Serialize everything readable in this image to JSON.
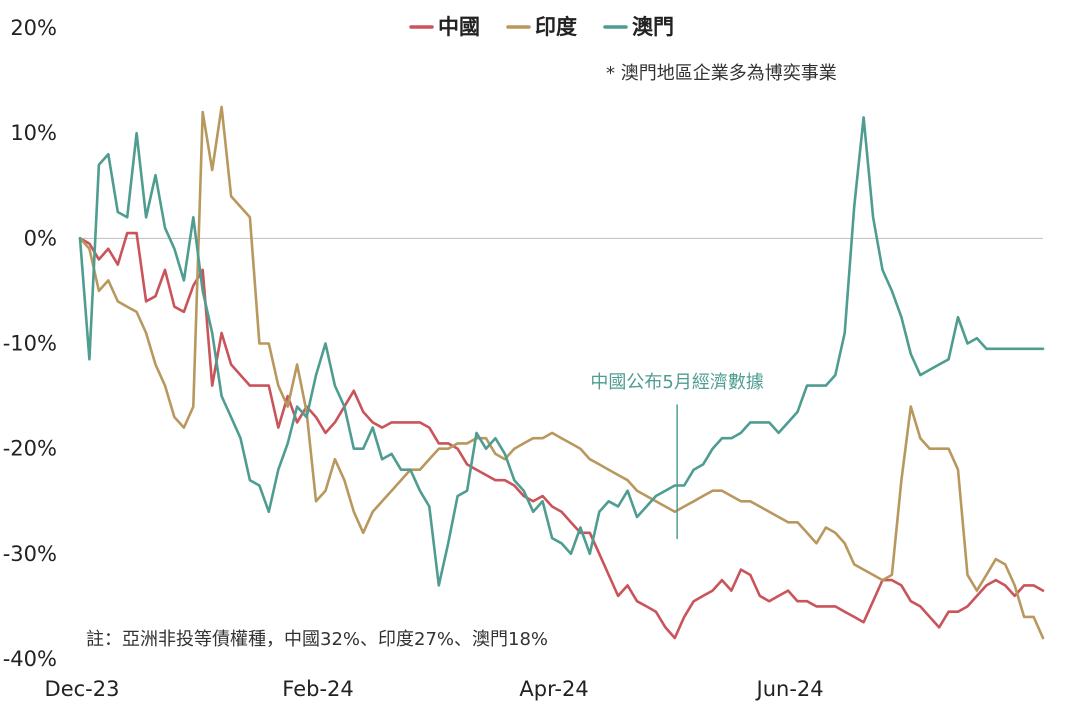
{
  "chart_data": {
    "type": "line",
    "title": "",
    "xlabel": "",
    "ylabel": "",
    "ylim": [
      -40,
      20
    ],
    "yticks": [
      20,
      10,
      0,
      -10,
      -20,
      -30,
      -40
    ],
    "ytick_labels": [
      "20%",
      "10%",
      "0%",
      "-10%",
      "-20%",
      "-30%",
      "-40%"
    ],
    "xlim": [
      0,
      204
    ],
    "xticks": [
      0,
      50,
      100,
      150
    ],
    "xtick_labels": [
      "Dec-23",
      "Feb-24",
      "Apr-24",
      "Jun-24"
    ],
    "legend_position": "top-center",
    "grid": false,
    "series": [
      {
        "name": "中國",
        "color": "#c9545a",
        "x": [
          0,
          2,
          4,
          6,
          8,
          10,
          12,
          14,
          16,
          18,
          20,
          22,
          24,
          26,
          28,
          30,
          32,
          34,
          36,
          38,
          40,
          42,
          44,
          46,
          48,
          50,
          52,
          54,
          56,
          58,
          60,
          62,
          64,
          66,
          68,
          70,
          72,
          74,
          76,
          78,
          80,
          82,
          84,
          86,
          88,
          90,
          92,
          94,
          96,
          98,
          100,
          102,
          104,
          106,
          108,
          110,
          112,
          114,
          116,
          118,
          120,
          122,
          124,
          126,
          128,
          130,
          132,
          134,
          136,
          138,
          140,
          142,
          144,
          146,
          148,
          150,
          152,
          154,
          156,
          158,
          160,
          162,
          164,
          166,
          168,
          170,
          172,
          174,
          176,
          178,
          180,
          182,
          184,
          186,
          188,
          190,
          192,
          194,
          196,
          198,
          200,
          202,
          204
        ],
        "values": [
          0,
          -0.5,
          -2,
          -1,
          -2.5,
          0.5,
          0.5,
          -6,
          -5.5,
          -3,
          -6.5,
          -7,
          -4.5,
          -3,
          -14,
          -9,
          -12,
          -13,
          -14,
          -14,
          -14,
          -18,
          -15,
          -17.5,
          -16,
          -17,
          -18.5,
          -17.5,
          -16,
          -14.5,
          -16.5,
          -17.5,
          -18,
          -17.5,
          -17.5,
          -17.5,
          -17.5,
          -18,
          -19.5,
          -19.5,
          -20,
          -21.5,
          -22,
          -22.5,
          -23,
          -23,
          -23.5,
          -24.5,
          -25,
          -24.5,
          -25.5,
          -26,
          -27,
          -28,
          -28,
          -30,
          -32,
          -34,
          -33,
          -34.5,
          -35,
          -35.5,
          -37,
          -38,
          -36,
          -34.5,
          -34,
          -33.5,
          -32.5,
          -33.5,
          -31.5,
          -32,
          -34,
          -34.5,
          -34,
          -33.5,
          -34.5,
          -34.5,
          -35,
          -35,
          -35,
          -35.5,
          -36,
          -36.5,
          -34.5,
          -32.5,
          -32.5,
          -33,
          -34.5,
          -35,
          -36,
          -37,
          -35.5,
          -35.5,
          -35,
          -34,
          -33,
          -32.5,
          -33,
          -34,
          -33,
          -33,
          -33.5
        ]
      },
      {
        "name": "印度",
        "color": "#b8985e",
        "x": [
          0,
          2,
          4,
          6,
          8,
          10,
          12,
          14,
          16,
          18,
          20,
          22,
          24,
          26,
          28,
          30,
          32,
          34,
          36,
          38,
          40,
          42,
          44,
          46,
          48,
          50,
          52,
          54,
          56,
          58,
          60,
          62,
          64,
          66,
          68,
          70,
          72,
          74,
          76,
          78,
          80,
          82,
          84,
          86,
          88,
          90,
          92,
          94,
          96,
          98,
          100,
          102,
          104,
          106,
          108,
          110,
          112,
          114,
          116,
          118,
          120,
          122,
          124,
          126,
          128,
          130,
          132,
          134,
          136,
          138,
          140,
          142,
          144,
          146,
          148,
          150,
          152,
          154,
          156,
          158,
          160,
          162,
          164,
          166,
          168,
          170,
          172,
          174,
          176,
          178,
          180,
          182,
          184,
          186,
          188,
          190,
          192,
          194,
          196,
          198,
          200,
          202,
          204
        ],
        "values": [
          0,
          -1,
          -5,
          -4,
          -6,
          -6.5,
          -7,
          -9,
          -12,
          -14,
          -17,
          -18,
          -16,
          12,
          6.5,
          12.5,
          4,
          3,
          2,
          -10,
          -10,
          -14,
          -16,
          -12,
          -16.5,
          -25,
          -24,
          -21,
          -23,
          -26,
          -28,
          -26,
          -25,
          -24,
          -23,
          -22,
          -22,
          -21,
          -20,
          -20,
          -19.5,
          -19.5,
          -19,
          -19,
          -20.5,
          -21,
          -20,
          -19.5,
          -19,
          -19,
          -18.5,
          -19,
          -19.5,
          -20,
          -21,
          -21.5,
          -22,
          -22.5,
          -23,
          -24,
          -24.5,
          -25,
          -25.5,
          -26,
          -25.5,
          -25,
          -24.5,
          -24,
          -24,
          -24.5,
          -25,
          -25,
          -25.5,
          -26,
          -26.5,
          -27,
          -27,
          -28,
          -29,
          -27.5,
          -28,
          -29,
          -31,
          -31.5,
          -32,
          -32.5,
          -32,
          -23,
          -16,
          -19,
          -20,
          -20,
          -20,
          -22,
          -32,
          -33.5,
          -32,
          -30.5,
          -31,
          -33,
          -36,
          -36,
          -38
        ]
      },
      {
        "name": "澳門",
        "color": "#4f9c91",
        "x": [
          0,
          2,
          4,
          6,
          8,
          10,
          12,
          14,
          16,
          18,
          20,
          22,
          24,
          26,
          28,
          30,
          32,
          34,
          36,
          38,
          40,
          42,
          44,
          46,
          48,
          50,
          52,
          54,
          56,
          58,
          60,
          62,
          64,
          66,
          68,
          70,
          72,
          74,
          76,
          78,
          80,
          82,
          84,
          86,
          88,
          90,
          92,
          94,
          96,
          98,
          100,
          102,
          104,
          106,
          108,
          110,
          112,
          114,
          116,
          118,
          120,
          122,
          124,
          126,
          128,
          130,
          132,
          134,
          136,
          138,
          140,
          142,
          144,
          146,
          148,
          150,
          152,
          154,
          156,
          158,
          160,
          162,
          164,
          166,
          168,
          170,
          172,
          174,
          176,
          178,
          180,
          182,
          184,
          186,
          188,
          190,
          192,
          194,
          196,
          198,
          200,
          202,
          204
        ],
        "values": [
          0,
          -11.5,
          7,
          8,
          2.5,
          2,
          10,
          2,
          6,
          1,
          -1,
          -4,
          2,
          -5,
          -9,
          -15,
          -17,
          -19,
          -23,
          -23.5,
          -26,
          -22,
          -19.5,
          -16,
          -17,
          -13,
          -10,
          -14,
          -16,
          -20,
          -20,
          -18,
          -21,
          -20.5,
          -22,
          -22,
          -24,
          -25.5,
          -33,
          -29,
          -24.5,
          -24,
          -18.5,
          -20,
          -19,
          -20.5,
          -23,
          -24,
          -26,
          -25,
          -28.5,
          -29,
          -30,
          -27.5,
          -30,
          -26,
          -25,
          -25.5,
          -24,
          -26.5,
          -25.5,
          -24.5,
          -24,
          -23.5,
          -23.5,
          -22,
          -21.5,
          -20,
          -19,
          -19,
          -18.5,
          -17.5,
          -17.5,
          -17.5,
          -18.5,
          -17.5,
          -16.5,
          -14,
          -14,
          -14,
          -13,
          -9,
          3,
          11.5,
          2,
          -3,
          -5,
          -7.5,
          -11,
          -13,
          -12.5,
          -12,
          -11.5,
          -7.5,
          -10,
          -9.5,
          -10.5,
          -10.5,
          -10.5,
          -10.5,
          -10.5,
          -10.5,
          -10.5
        ]
      }
    ],
    "annotations": [
      {
        "text": "* 澳門地區企業多為博奕事業"
      },
      {
        "text": "中國公布5月經濟數據",
        "x": 126.5,
        "y_top": -15.8,
        "y_bottom": -28.6,
        "color": "#4f9c91"
      },
      {
        "text": "註：亞洲非投等債權種，中國32%、印度27%、澳門18%"
      }
    ]
  }
}
